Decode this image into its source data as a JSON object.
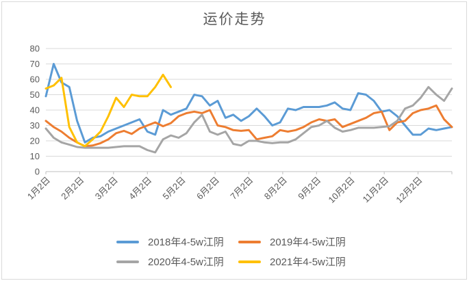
{
  "title": "运价走势",
  "chart_data": {
    "type": "line",
    "title": "运价走势",
    "xlabel": "",
    "ylabel": "",
    "ylim": [
      0,
      80
    ],
    "y_tick_labels": [
      0,
      10,
      20,
      30,
      40,
      50,
      60,
      70,
      80
    ],
    "x_tick_labels": [
      "1月2日",
      "2月2日",
      "3月2日",
      "4月2日",
      "5月2日",
      "6月2日",
      "7月2日",
      "8月2日",
      "9月2日",
      "10月2日",
      "11月2日",
      "12月2日"
    ],
    "x_unit": "week-of-year (values sampled weekly, Jan 2 = week 0)",
    "x_range_weeks": [
      0,
      52
    ],
    "grid": "horizontal",
    "legend_position": "bottom",
    "series": [
      {
        "name": "2018年4-5w江阴",
        "color": "#5B9BD5",
        "start_week": 0,
        "values": [
          49,
          70,
          58,
          55,
          33,
          19,
          22,
          23,
          26,
          28,
          30,
          32,
          34,
          26,
          24,
          40,
          37,
          39,
          41,
          50,
          49,
          43,
          46,
          35,
          37,
          33,
          36,
          41,
          36,
          30,
          32,
          41,
          40,
          42,
          42,
          42,
          43,
          45,
          41,
          40,
          51,
          50,
          46,
          39,
          40,
          36,
          30,
          24,
          24,
          28,
          27,
          28,
          29
        ]
      },
      {
        "name": "2019年4-5w江阴",
        "color": "#ED7D31",
        "start_week": 0,
        "values": [
          33,
          29,
          26,
          22,
          19,
          16.5,
          17,
          18.5,
          21,
          25,
          26.5,
          24.5,
          28,
          30,
          32,
          29.5,
          31.5,
          36,
          38,
          39,
          38,
          40,
          30,
          29,
          27,
          26.5,
          27,
          21,
          22,
          23,
          27,
          26,
          27,
          29,
          32,
          34,
          33,
          34,
          29,
          31,
          33,
          35,
          38,
          39,
          27,
          32,
          33,
          38,
          40,
          41,
          43,
          34,
          29
        ]
      },
      {
        "name": "2020年4-5w江阴",
        "color": "#A5A5A5",
        "start_week": 0,
        "values": [
          28,
          22,
          19,
          17.5,
          16,
          15.5,
          15.5,
          15.5,
          15.5,
          16,
          16.5,
          16.5,
          16.5,
          14,
          12.5,
          21,
          23.5,
          22,
          25,
          32,
          37,
          26,
          24,
          26,
          18,
          17,
          20,
          20,
          19,
          18.5,
          19,
          19,
          21,
          25,
          29,
          30,
          33,
          28.5,
          26,
          27,
          28.5,
          28.5,
          28.5,
          29,
          29.5,
          33,
          41,
          43,
          48,
          55,
          50,
          46,
          54
        ]
      },
      {
        "name": "2021年4-5w江阴",
        "color": "#FFC000",
        "start_week": 0,
        "values": [
          54,
          56,
          61,
          29,
          19,
          16.5,
          21,
          26,
          36,
          48,
          42,
          50,
          49,
          49,
          55,
          63,
          55
        ]
      }
    ]
  }
}
